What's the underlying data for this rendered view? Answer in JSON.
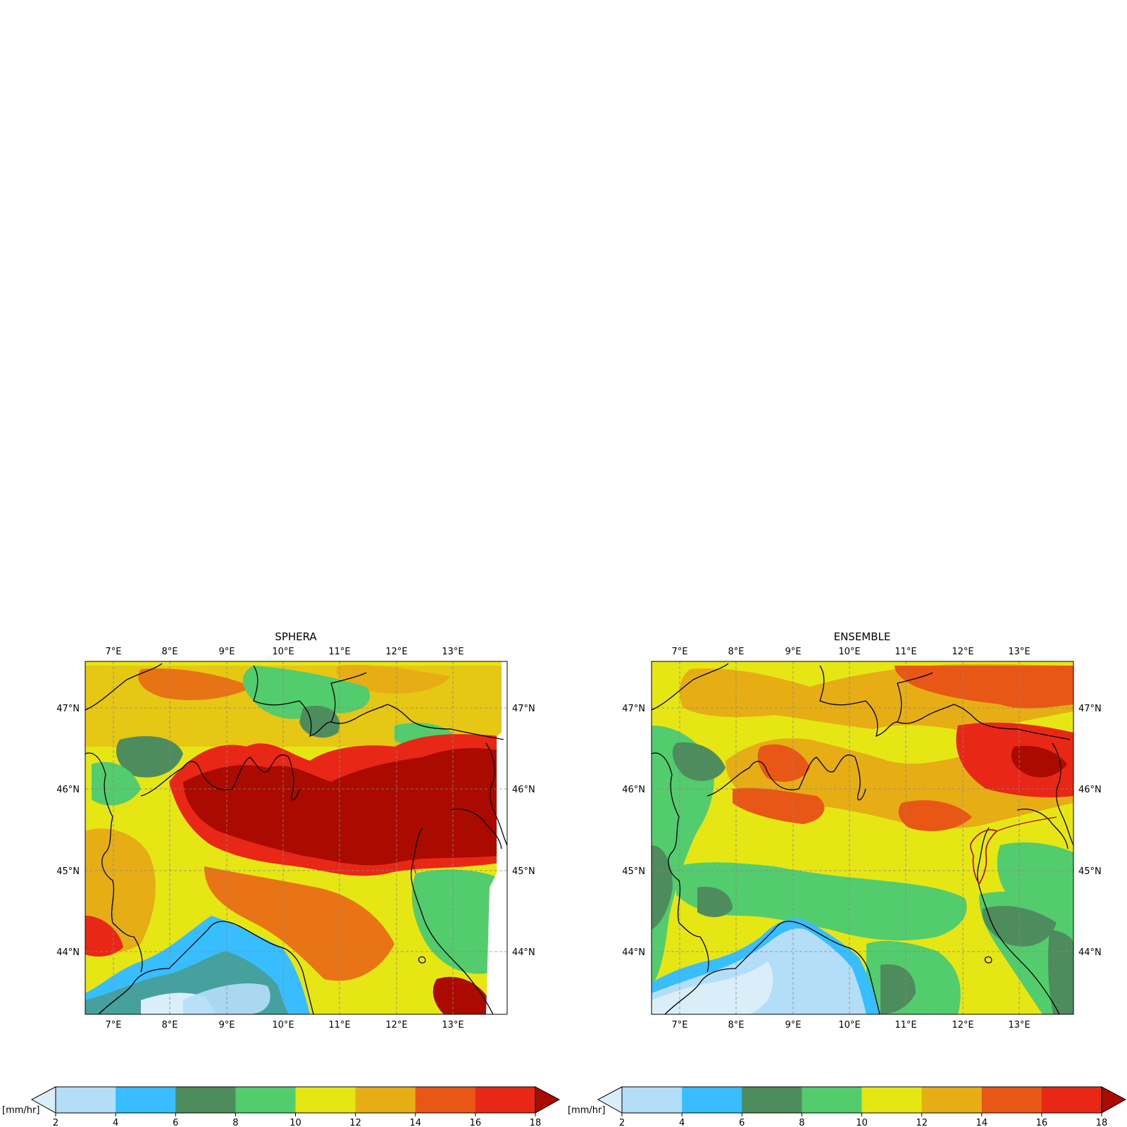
{
  "panels": [
    {
      "id": "sphera",
      "title": "SPHERA",
      "lon_ticks": [
        "7°E",
        "8°E",
        "9°E",
        "10°E",
        "11°E",
        "12°E",
        "13°E"
      ],
      "lat_ticks": [
        "47°N",
        "46°N",
        "45°N",
        "44°N"
      ]
    },
    {
      "id": "ensemble",
      "title": "ENSEMBLE",
      "lon_ticks": [
        "7°E",
        "8°E",
        "9°E",
        "10°E",
        "11°E",
        "12°E",
        "13°E"
      ],
      "lat_ticks": [
        "47°N",
        "46°N",
        "45°N",
        "44°N"
      ]
    }
  ],
  "colorbar": {
    "unit": "[mm/hr]",
    "ticks": [
      "2",
      "4",
      "6",
      "8",
      "10",
      "12",
      "14",
      "16",
      "18"
    ],
    "colors": [
      "#b4def8",
      "#38bdff",
      "#4e8c5e",
      "#52cc6c",
      "#e6e614",
      "#e6ad14",
      "#e85716",
      "#e82716"
    ],
    "under_color": "#daeefa",
    "over_color": "#aa0a00"
  },
  "map_colors": {
    "sea_light": "#daeefa",
    "sea": "#b4def8",
    "coast_blue": "#38bdff",
    "dark_green": "#4e8c5e",
    "green": "#52cc6c",
    "yellow": "#e6e614",
    "orange": "#e6ad14",
    "dark_orange": "#e85716",
    "red": "#e82716",
    "dark_red": "#aa0a00"
  }
}
